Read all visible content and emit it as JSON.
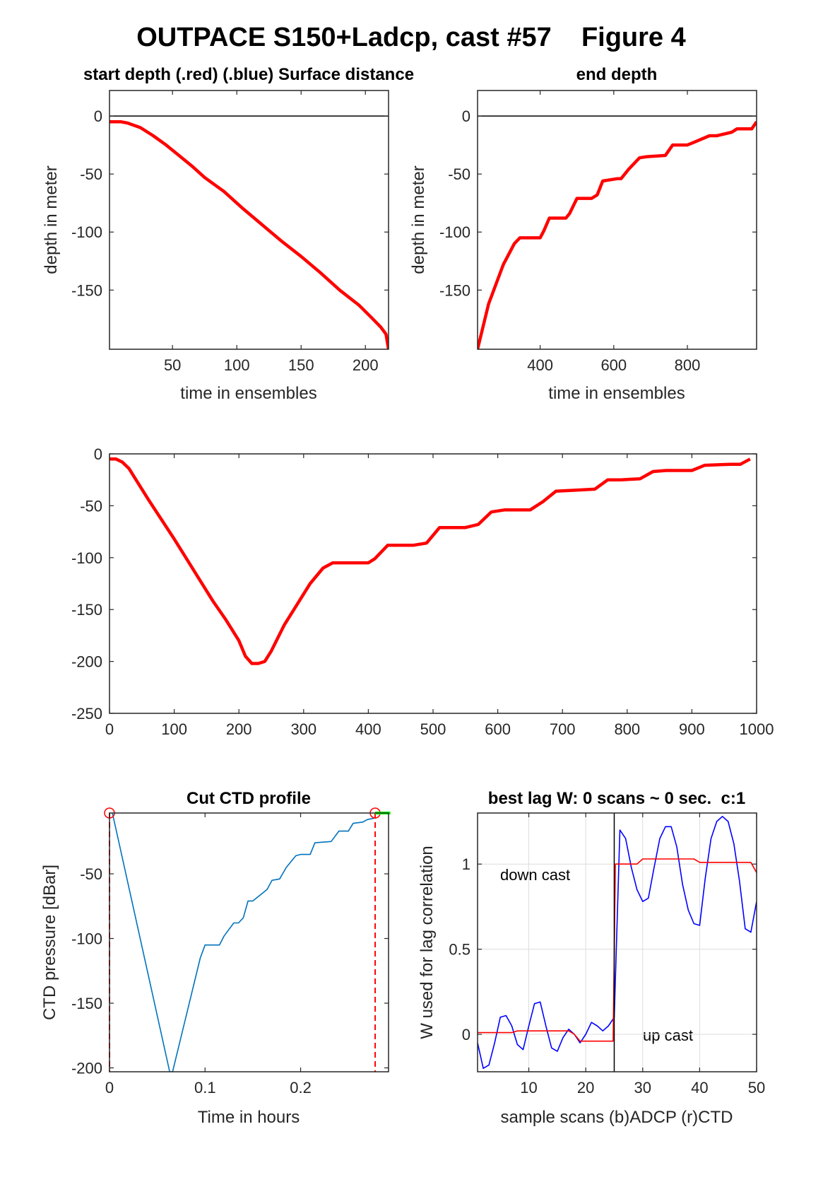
{
  "figure": {
    "title": "OUTPACE S150+Ladcp, cast #57    Figure 4"
  },
  "colors": {
    "red": "#ff0000",
    "blue": "#0000ff",
    "ctd_blue": "#0072bd",
    "green": "#00ff00",
    "grid": "#dcdcdc"
  },
  "chart_data": [
    {
      "id": "start",
      "type": "line",
      "title": "start depth (.red) (.blue) Surface distance",
      "xlabel": "time in ensembles",
      "ylabel": "depth in meter",
      "xlim": [
        1,
        218
      ],
      "ylim": [
        -201,
        22
      ],
      "xticks": [
        50,
        100,
        150,
        200
      ],
      "xticklabels": [
        "50",
        "100",
        "150",
        "200"
      ],
      "yticks": [
        -150,
        -100,
        -50,
        0
      ],
      "yticklabels": [
        "-150",
        "-100",
        "-50",
        "0"
      ],
      "reference_line": 0,
      "series": [
        {
          "color": "red",
          "x": [
            1,
            5,
            10,
            15,
            20,
            25,
            35,
            45,
            55,
            65,
            75,
            90,
            105,
            120,
            135,
            150,
            165,
            180,
            195,
            205,
            212,
            216,
            218
          ],
          "y": [
            -5,
            -5,
            -5,
            -6,
            -8,
            -10,
            -17,
            -25,
            -34,
            -43,
            -53,
            -65,
            -80,
            -94,
            -108,
            -121,
            -135,
            -150,
            -163,
            -174,
            -182,
            -188,
            -201
          ]
        }
      ]
    },
    {
      "id": "end",
      "type": "line",
      "title": "end depth",
      "xlabel": "time in ensembles",
      "ylabel": "depth in meter",
      "xlim": [
        230,
        988
      ],
      "ylim": [
        -201,
        22
      ],
      "xticks": [
        400,
        600,
        800
      ],
      "xticklabels": [
        "400",
        "600",
        "800"
      ],
      "yticks": [
        -150,
        -100,
        -50,
        0
      ],
      "yticklabels": [
        "-150",
        "-100",
        "-50",
        "0"
      ],
      "reference_line": 0,
      "series": [
        {
          "color": "red",
          "x": [
            230,
            260,
            300,
            330,
            345,
            400,
            410,
            425,
            470,
            480,
            500,
            540,
            555,
            570,
            610,
            620,
            640,
            670,
            690,
            740,
            760,
            800,
            815,
            860,
            880,
            920,
            935,
            975,
            988
          ],
          "y": [
            -201,
            -162,
            -128,
            -110,
            -105,
            -105,
            -99,
            -88,
            -88,
            -84,
            -71,
            -71,
            -68,
            -56,
            -54,
            -54,
            -46,
            -36,
            -35,
            -34,
            -25,
            -25,
            -23,
            -17,
            -17,
            -14,
            -11,
            -11,
            -5
          ]
        }
      ]
    },
    {
      "id": "whole",
      "type": "line",
      "title": "",
      "xlabel": "",
      "ylabel": "",
      "xlim": [
        0,
        1000
      ],
      "ylim": [
        -250,
        0
      ],
      "xticks": [
        0,
        100,
        200,
        300,
        400,
        500,
        600,
        700,
        800,
        900,
        1000
      ],
      "xticklabels": [
        "0",
        "100",
        "200",
        "300",
        "400",
        "500",
        "600",
        "700",
        "800",
        "900",
        "1000"
      ],
      "yticks": [
        -250,
        -200,
        -150,
        -100,
        -50,
        0
      ],
      "yticklabels": [
        "-250",
        "-200",
        "-150",
        "-100",
        "-50",
        "0"
      ],
      "series": [
        {
          "color": "red",
          "x": [
            0,
            10,
            20,
            30,
            40,
            60,
            80,
            100,
            120,
            140,
            160,
            180,
            200,
            210,
            220,
            230,
            240,
            250,
            270,
            290,
            310,
            330,
            345,
            400,
            410,
            430,
            470,
            490,
            510,
            550,
            570,
            590,
            610,
            650,
            670,
            690,
            720,
            750,
            770,
            790,
            820,
            840,
            860,
            900,
            920,
            960,
            975,
            990
          ],
          "y": [
            -5,
            -5,
            -8,
            -14,
            -24,
            -44,
            -63,
            -82,
            -102,
            -122,
            -142,
            -160,
            -180,
            -195,
            -202,
            -202,
            -200,
            -190,
            -165,
            -145,
            -125,
            -110,
            -105,
            -105,
            -101,
            -88,
            -88,
            -86,
            -71,
            -71,
            -68,
            -56,
            -54,
            -54,
            -46,
            -36,
            -35,
            -34,
            -25,
            -25,
            -24,
            -17,
            -16,
            -16,
            -11,
            -10,
            -10,
            -5
          ]
        }
      ]
    },
    {
      "id": "ctd",
      "type": "line",
      "title": "Cut CTD profile",
      "xlabel": "Time in hours",
      "ylabel": "CTD pressure [dBar]",
      "xlim": [
        0,
        0.292
      ],
      "ylim": [
        -203,
        -3
      ],
      "xticks": [
        0,
        0.1,
        0.2
      ],
      "xticklabels": [
        "0",
        "0.1",
        "0.2"
      ],
      "yticks": [
        -200,
        -150,
        -100,
        -50
      ],
      "yticklabels": [
        "-200",
        "-150",
        "-100",
        "-50"
      ],
      "series": [
        {
          "color": "ctd_blue",
          "x": [
            0.003,
            0.063,
            0.066,
            0.095,
            0.1,
            0.115,
            0.12,
            0.13,
            0.135,
            0.14,
            0.145,
            0.15,
            0.165,
            0.17,
            0.17,
            0.178,
            0.185,
            0.195,
            0.2,
            0.21,
            0.215,
            0.232,
            0.24,
            0.25,
            0.255,
            0.265,
            0.27,
            0.277
          ],
          "y": [
            -3,
            -203,
            -203,
            -115,
            -105,
            -105,
            -98,
            -88,
            -88,
            -84,
            -71,
            -71,
            -62,
            -55,
            -55,
            -54,
            -45,
            -36,
            -35,
            -35,
            -26,
            -25,
            -17,
            -17,
            -11,
            -10,
            -8,
            -7
          ]
        }
      ],
      "cut_markers": [
        0.0,
        0.278
      ],
      "green_tail": [
        0.278,
        0.294,
        -3
      ]
    },
    {
      "id": "lag",
      "type": "line",
      "title": "best lag W: 0 scans ~ 0 sec.  c:1",
      "xlabel": "sample scans (b)ADCP (r)CTD",
      "ylabel": "W used for lag correlation",
      "xlim": [
        1,
        50
      ],
      "ylim": [
        -0.22,
        1.3
      ],
      "xticks": [
        10,
        20,
        30,
        40,
        50
      ],
      "xticklabels": [
        "10",
        "20",
        "30",
        "40",
        "50"
      ],
      "yticks": [
        0,
        0.5,
        1
      ],
      "yticklabels": [
        "0",
        "0.5",
        "1"
      ],
      "grid": true,
      "vertical_line": 25,
      "annotations": [
        {
          "text": "down cast"
        },
        {
          "text": "up cast"
        }
      ],
      "series": [
        {
          "name": "ADCP",
          "color": "blue",
          "x": [
            1,
            2,
            3,
            4,
            5,
            6,
            7,
            8,
            9,
            10,
            11,
            12,
            13,
            14,
            15,
            16,
            17,
            18,
            19,
            20,
            21,
            22,
            23,
            24,
            25,
            26,
            27,
            28,
            29,
            30,
            31,
            32,
            33,
            34,
            35,
            36,
            37,
            38,
            39,
            40,
            41,
            42,
            43,
            44,
            45,
            46,
            47,
            48,
            49,
            50
          ],
          "y": [
            -0.05,
            -0.2,
            -0.18,
            -0.05,
            0.1,
            0.11,
            0.05,
            -0.06,
            -0.09,
            0.05,
            0.18,
            0.19,
            0.05,
            -0.08,
            -0.1,
            -0.02,
            0.03,
            0.0,
            -0.05,
            0.0,
            0.07,
            0.05,
            0.02,
            0.05,
            0.1,
            1.2,
            1.15,
            0.98,
            0.85,
            0.78,
            0.8,
            0.98,
            1.15,
            1.22,
            1.22,
            1.1,
            0.88,
            0.73,
            0.65,
            0.64,
            0.92,
            1.15,
            1.25,
            1.28,
            1.25,
            1.12,
            0.9,
            0.62,
            0.6,
            0.78
          ]
        },
        {
          "name": "CTD",
          "color": "red",
          "x": [
            1,
            7,
            8,
            17,
            18,
            19,
            24.8,
            25.2,
            26,
            29,
            30,
            39,
            40,
            49,
            50
          ],
          "y": [
            0.01,
            0.01,
            0.02,
            0.02,
            0.0,
            -0.04,
            -0.04,
            1.0,
            1.0,
            1.0,
            1.03,
            1.03,
            1.01,
            1.01,
            0.95
          ]
        }
      ]
    }
  ]
}
